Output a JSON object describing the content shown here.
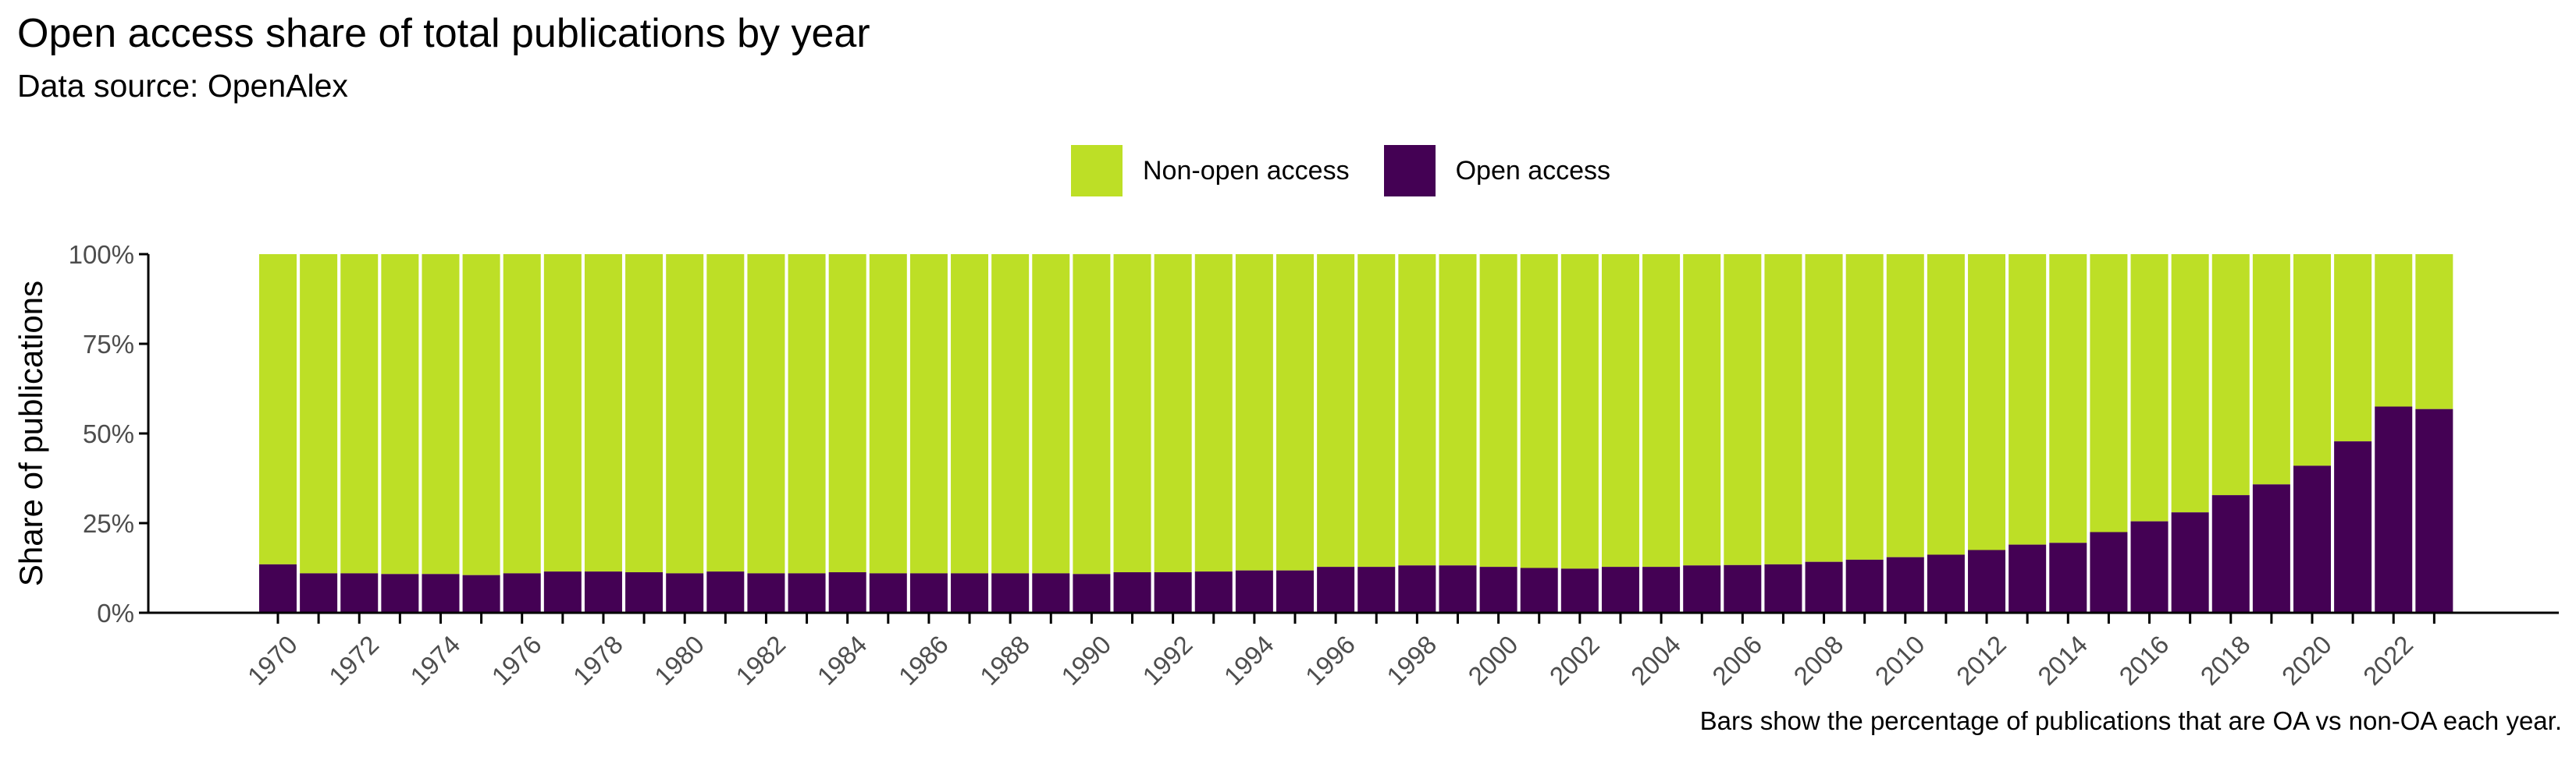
{
  "title": "Open access share of total publications by year",
  "subtitle": "Data source: OpenAlex",
  "caption": "Bars show the percentage of publications that are OA vs non-OA each year.",
  "colors": {
    "open_access": "#440154",
    "non_open_access": "#bddf26"
  },
  "chart_data": {
    "type": "bar",
    "stacked": true,
    "normalized": true,
    "title": "Open access share of total publications by year",
    "subtitle": "Data source: OpenAlex",
    "ylabel": "Share of publications",
    "xlabel": "",
    "ylim": [
      0,
      100
    ],
    "y_ticks": [
      "0%",
      "25%",
      "50%",
      "75%",
      "100%"
    ],
    "y_tick_values": [
      0,
      25,
      50,
      75,
      100
    ],
    "legend_position": "top",
    "grid": false,
    "categories": [
      1970,
      1971,
      1972,
      1973,
      1974,
      1975,
      1976,
      1977,
      1978,
      1979,
      1980,
      1981,
      1982,
      1983,
      1984,
      1985,
      1986,
      1987,
      1988,
      1989,
      1990,
      1991,
      1992,
      1993,
      1994,
      1995,
      1996,
      1997,
      1998,
      1999,
      2000,
      2001,
      2002,
      2003,
      2004,
      2005,
      2006,
      2007,
      2008,
      2009,
      2010,
      2011,
      2012,
      2013,
      2014,
      2015,
      2016,
      2017,
      2018,
      2019,
      2020,
      2021,
      2022,
      2023
    ],
    "x_tick_labels": [
      "1970",
      "1972",
      "1974",
      "1976",
      "1978",
      "1980",
      "1982",
      "1984",
      "1986",
      "1988",
      "1990",
      "1992",
      "1994",
      "1996",
      "1998",
      "2000",
      "2002",
      "2004",
      "2006",
      "2008",
      "2010",
      "2012",
      "2014",
      "2016",
      "2018",
      "2020",
      "2022"
    ],
    "series": [
      {
        "name": "Open access",
        "values": [
          13.5,
          11,
          11,
          10.8,
          10.8,
          10.5,
          11,
          11.5,
          11.5,
          11.3,
          11,
          11.5,
          11,
          11,
          11.3,
          11,
          11,
          11,
          11,
          11,
          10.8,
          11.3,
          11.3,
          11.5,
          11.8,
          11.8,
          12.8,
          12.8,
          13.2,
          13.2,
          12.8,
          12.5,
          12.3,
          12.8,
          12.8,
          13.2,
          13.3,
          13.5,
          14.2,
          14.8,
          15.5,
          16.2,
          17.5,
          19,
          19.5,
          22.5,
          25.5,
          28,
          32.8,
          35.8,
          41,
          47.8,
          57.5,
          56.8
        ]
      },
      {
        "name": "Non-open access",
        "values": [
          86.5,
          89,
          89,
          89.2,
          89.2,
          89.5,
          89,
          88.5,
          88.5,
          88.7,
          89,
          88.5,
          89,
          89,
          88.7,
          89,
          89,
          89,
          89,
          89,
          89.2,
          88.7,
          88.7,
          88.5,
          88.2,
          88.2,
          87.2,
          87.2,
          86.8,
          86.8,
          87.2,
          87.5,
          87.7,
          87.2,
          87.2,
          86.8,
          86.7,
          86.5,
          85.8,
          85.2,
          84.5,
          83.8,
          82.5,
          81,
          80.5,
          77.5,
          74.5,
          72,
          67.2,
          64.2,
          59,
          52.2,
          42.5,
          43.2
        ]
      }
    ],
    "legend": [
      "Non-open access",
      "Open access"
    ]
  }
}
